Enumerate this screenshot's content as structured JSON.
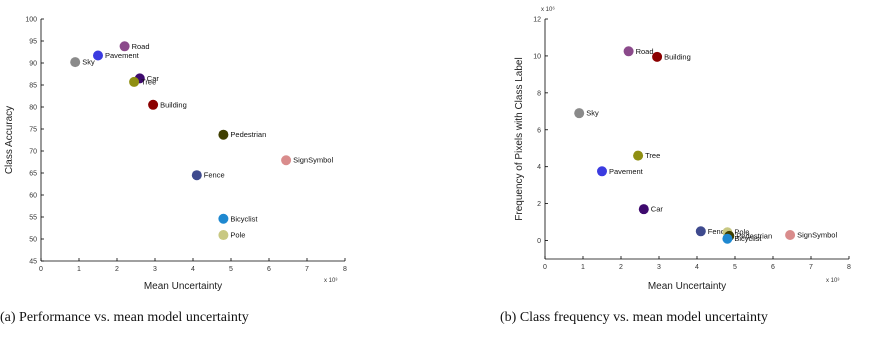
{
  "chart_data": [
    {
      "type": "scatter",
      "xlabel": "Mean Uncertainty",
      "ylabel": "Class Accuracy",
      "x_multiplier": "x 10³",
      "xlim": [
        0,
        8
      ],
      "ylim": [
        45,
        100
      ],
      "xticks": [
        0,
        1,
        2,
        3,
        4,
        5,
        6,
        7,
        8
      ],
      "yticks": [
        45,
        50,
        55,
        60,
        65,
        70,
        75,
        80,
        85,
        90,
        95,
        100
      ],
      "grid": false,
      "points": [
        {
          "label": "Sky",
          "x": 0.9,
          "y": 90.2,
          "color": "#8a8a8a"
        },
        {
          "label": "Pavement",
          "x": 1.5,
          "y": 91.7,
          "color": "#3b3be0"
        },
        {
          "label": "Road",
          "x": 2.2,
          "y": 93.8,
          "color": "#8b4a8b"
        },
        {
          "label": "Car",
          "x": 2.6,
          "y": 86.5,
          "color": "#3e0a6e"
        },
        {
          "label": "Tree",
          "x": 2.45,
          "y": 85.7,
          "color": "#8f8f12"
        },
        {
          "label": "Building",
          "x": 2.95,
          "y": 80.5,
          "color": "#8b0000"
        },
        {
          "label": "Pedestrian",
          "x": 4.8,
          "y": 73.7,
          "color": "#3f3f00"
        },
        {
          "label": "SignSymbol",
          "x": 6.45,
          "y": 67.9,
          "color": "#d98c8c"
        },
        {
          "label": "Fence",
          "x": 4.1,
          "y": 64.5,
          "color": "#3e4a8e"
        },
        {
          "label": "Bicyclist",
          "x": 4.8,
          "y": 54.6,
          "color": "#1e88d0"
        },
        {
          "label": "Pole",
          "x": 4.8,
          "y": 50.9,
          "color": "#c8c882"
        }
      ]
    },
    {
      "type": "scatter",
      "xlabel": "Mean Uncertainty",
      "ylabel": "Frequency of Pixels with Class Label",
      "x_multiplier": "x 10³",
      "y_multiplier": "x 10⁶",
      "xlim": [
        0,
        8
      ],
      "ylim": [
        -1,
        12
      ],
      "xticks": [
        0,
        1,
        2,
        3,
        4,
        5,
        6,
        7,
        8
      ],
      "yticks": [
        0,
        2,
        4,
        6,
        8,
        10,
        12
      ],
      "grid": false,
      "points": [
        {
          "label": "Road",
          "x": 2.2,
          "y": 10.25,
          "color": "#8b4a8b"
        },
        {
          "label": "Building",
          "x": 2.95,
          "y": 9.95,
          "color": "#8b0000"
        },
        {
          "label": "Sky",
          "x": 0.9,
          "y": 6.9,
          "color": "#8a8a8a"
        },
        {
          "label": "Tree",
          "x": 2.45,
          "y": 4.6,
          "color": "#8f8f12"
        },
        {
          "label": "Pavement",
          "x": 1.5,
          "y": 3.75,
          "color": "#3b3be0"
        },
        {
          "label": "Car",
          "x": 2.6,
          "y": 1.7,
          "color": "#3e0a6e"
        },
        {
          "label": "Fence",
          "x": 4.1,
          "y": 0.5,
          "color": "#3e4a8e"
        },
        {
          "label": "Pole",
          "x": 4.8,
          "y": 0.45,
          "color": "#c8c882"
        },
        {
          "label": "Pedestrian",
          "x": 4.85,
          "y": 0.25,
          "color": "#3f3f00"
        },
        {
          "label": "Bicyclist",
          "x": 4.8,
          "y": 0.1,
          "color": "#1e88d0"
        },
        {
          "label": "SignSymbol",
          "x": 6.45,
          "y": 0.3,
          "color": "#d98c8c"
        }
      ]
    }
  ],
  "captions": {
    "a": "(a)  Performance vs. mean model uncertainty",
    "b": "(b)  Class frequency vs.  mean model uncertainty"
  }
}
